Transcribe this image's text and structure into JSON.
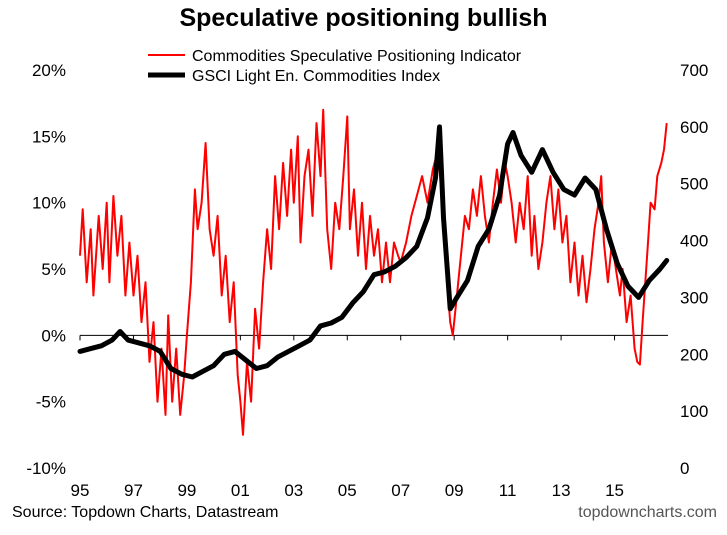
{
  "chart_data": {
    "type": "line",
    "title": "Speculative positioning bullish",
    "source": "Source: Topdown Charts, Datastream",
    "watermark": "topdowncharts.com",
    "x_ticks": [
      "95",
      "97",
      "99",
      "01",
      "03",
      "05",
      "07",
      "09",
      "11",
      "13",
      "15"
    ],
    "x_range": [
      1995.0,
      2017.0
    ],
    "y_left": {
      "ticks": [
        "-10%",
        "-5%",
        "0%",
        "5%",
        "10%",
        "15%",
        "20%"
      ],
      "range": [
        -10,
        20
      ]
    },
    "y_right": {
      "ticks": [
        "0",
        "100",
        "200",
        "300",
        "400",
        "500",
        "600",
        "700"
      ],
      "range": [
        0,
        700
      ]
    },
    "legend_position": "top-center",
    "series": [
      {
        "name": "Commodities Speculative Positioning Indicator",
        "color": "#ff0000",
        "axis": "left",
        "points": [
          [
            1995.0,
            6
          ],
          [
            1995.1,
            9.5
          ],
          [
            1995.25,
            4
          ],
          [
            1995.4,
            8
          ],
          [
            1995.5,
            3
          ],
          [
            1995.7,
            9
          ],
          [
            1995.85,
            5
          ],
          [
            1996.0,
            10
          ],
          [
            1996.1,
            4
          ],
          [
            1996.25,
            10.5
          ],
          [
            1996.4,
            6
          ],
          [
            1996.55,
            9
          ],
          [
            1996.7,
            3
          ],
          [
            1996.85,
            7
          ],
          [
            1997.0,
            3
          ],
          [
            1997.15,
            6
          ],
          [
            1997.3,
            1
          ],
          [
            1997.45,
            4
          ],
          [
            1997.6,
            -2
          ],
          [
            1997.75,
            1
          ],
          [
            1997.9,
            -5
          ],
          [
            1998.05,
            -1
          ],
          [
            1998.2,
            -6
          ],
          [
            1998.3,
            1.5
          ],
          [
            1998.45,
            -5
          ],
          [
            1998.6,
            -1
          ],
          [
            1998.75,
            -6
          ],
          [
            1998.9,
            -3
          ],
          [
            1999.0,
            0
          ],
          [
            1999.15,
            4
          ],
          [
            1999.3,
            11
          ],
          [
            1999.4,
            8
          ],
          [
            1999.55,
            10
          ],
          [
            1999.7,
            14.5
          ],
          [
            1999.85,
            8
          ],
          [
            2000.0,
            6
          ],
          [
            2000.15,
            9
          ],
          [
            2000.3,
            3
          ],
          [
            2000.45,
            6
          ],
          [
            2000.6,
            1
          ],
          [
            2000.75,
            4
          ],
          [
            2000.9,
            -3
          ],
          [
            2001.0,
            -5
          ],
          [
            2001.1,
            -7.5
          ],
          [
            2001.25,
            -2
          ],
          [
            2001.4,
            -5
          ],
          [
            2001.55,
            2
          ],
          [
            2001.7,
            -1
          ],
          [
            2001.85,
            4
          ],
          [
            2002.0,
            8
          ],
          [
            2002.15,
            5
          ],
          [
            2002.3,
            12
          ],
          [
            2002.45,
            8
          ],
          [
            2002.6,
            13
          ],
          [
            2002.75,
            9
          ],
          [
            2002.9,
            14
          ],
          [
            2003.0,
            10
          ],
          [
            2003.15,
            15
          ],
          [
            2003.25,
            7
          ],
          [
            2003.4,
            12
          ],
          [
            2003.55,
            14
          ],
          [
            2003.7,
            9
          ],
          [
            2003.85,
            16
          ],
          [
            2004.0,
            12
          ],
          [
            2004.1,
            17
          ],
          [
            2004.25,
            8
          ],
          [
            2004.4,
            5
          ],
          [
            2004.55,
            10
          ],
          [
            2004.7,
            8
          ],
          [
            2004.85,
            12
          ],
          [
            2005.0,
            16.5
          ],
          [
            2005.1,
            8
          ],
          [
            2005.25,
            11
          ],
          [
            2005.4,
            6
          ],
          [
            2005.55,
            10
          ],
          [
            2005.7,
            5
          ],
          [
            2005.85,
            9
          ],
          [
            2006.0,
            6
          ],
          [
            2006.15,
            8
          ],
          [
            2006.3,
            4
          ],
          [
            2006.45,
            7
          ],
          [
            2006.6,
            4
          ],
          [
            2006.75,
            7
          ],
          [
            2006.9,
            6
          ],
          [
            2007.0,
            5.5
          ],
          [
            2007.2,
            7
          ],
          [
            2007.4,
            9
          ],
          [
            2007.6,
            10.5
          ],
          [
            2007.8,
            12
          ],
          [
            2008.0,
            10
          ],
          [
            2008.2,
            12.5
          ],
          [
            2008.4,
            14
          ],
          [
            2008.55,
            10
          ],
          [
            2008.7,
            5
          ],
          [
            2008.85,
            1
          ],
          [
            2008.95,
            0
          ],
          [
            2009.1,
            3
          ],
          [
            2009.25,
            6
          ],
          [
            2009.4,
            9
          ],
          [
            2009.55,
            8
          ],
          [
            2009.7,
            11
          ],
          [
            2009.85,
            9
          ],
          [
            2010.0,
            12
          ],
          [
            2010.15,
            9
          ],
          [
            2010.3,
            7
          ],
          [
            2010.45,
            10
          ],
          [
            2010.6,
            12.5
          ],
          [
            2010.75,
            10
          ],
          [
            2010.9,
            13
          ],
          [
            2011.0,
            12
          ],
          [
            2011.15,
            10
          ],
          [
            2011.3,
            7
          ],
          [
            2011.45,
            10
          ],
          [
            2011.6,
            8
          ],
          [
            2011.75,
            12
          ],
          [
            2011.9,
            6
          ],
          [
            2012.0,
            9
          ],
          [
            2012.15,
            5
          ],
          [
            2012.3,
            7
          ],
          [
            2012.45,
            10
          ],
          [
            2012.6,
            12
          ],
          [
            2012.75,
            8
          ],
          [
            2012.9,
            11
          ],
          [
            2013.05,
            7
          ],
          [
            2013.2,
            9
          ],
          [
            2013.35,
            4
          ],
          [
            2013.5,
            7
          ],
          [
            2013.65,
            3
          ],
          [
            2013.8,
            6
          ],
          [
            2013.95,
            2.5
          ],
          [
            2014.1,
            5
          ],
          [
            2014.25,
            8
          ],
          [
            2014.4,
            10
          ],
          [
            2014.5,
            12
          ],
          [
            2014.6,
            7
          ],
          [
            2014.75,
            4
          ],
          [
            2014.9,
            7
          ],
          [
            2015.05,
            5
          ],
          [
            2015.2,
            3
          ],
          [
            2015.3,
            5
          ],
          [
            2015.45,
            1
          ],
          [
            2015.6,
            3
          ],
          [
            2015.75,
            -1
          ],
          [
            2015.85,
            -2
          ],
          [
            2015.95,
            -2.2
          ],
          [
            2016.05,
            1
          ],
          [
            2016.15,
            4
          ],
          [
            2016.25,
            7
          ],
          [
            2016.35,
            10
          ],
          [
            2016.5,
            9.5
          ],
          [
            2016.6,
            12
          ],
          [
            2016.75,
            13
          ],
          [
            2016.85,
            14
          ],
          [
            2016.95,
            16
          ]
        ]
      },
      {
        "name": "GSCI Light En. Commodities Index",
        "color": "#000000",
        "axis": "right",
        "points": [
          [
            1995.0,
            205
          ],
          [
            1995.4,
            210
          ],
          [
            1995.8,
            215
          ],
          [
            1996.2,
            225
          ],
          [
            1996.5,
            240
          ],
          [
            1996.8,
            225
          ],
          [
            1997.2,
            220
          ],
          [
            1997.6,
            215
          ],
          [
            1998.0,
            205
          ],
          [
            1998.4,
            175
          ],
          [
            1998.8,
            165
          ],
          [
            1999.2,
            160
          ],
          [
            1999.6,
            170
          ],
          [
            2000.0,
            180
          ],
          [
            2000.4,
            200
          ],
          [
            2000.8,
            205
          ],
          [
            2001.2,
            190
          ],
          [
            2001.6,
            175
          ],
          [
            2002.0,
            180
          ],
          [
            2002.4,
            195
          ],
          [
            2002.8,
            205
          ],
          [
            2003.2,
            215
          ],
          [
            2003.6,
            225
          ],
          [
            2004.0,
            250
          ],
          [
            2004.4,
            255
          ],
          [
            2004.8,
            265
          ],
          [
            2005.2,
            290
          ],
          [
            2005.6,
            310
          ],
          [
            2006.0,
            340
          ],
          [
            2006.4,
            345
          ],
          [
            2006.8,
            355
          ],
          [
            2007.2,
            370
          ],
          [
            2007.6,
            390
          ],
          [
            2008.0,
            440
          ],
          [
            2008.3,
            510
          ],
          [
            2008.45,
            600
          ],
          [
            2008.6,
            440
          ],
          [
            2008.85,
            280
          ],
          [
            2009.1,
            300
          ],
          [
            2009.5,
            330
          ],
          [
            2009.9,
            390
          ],
          [
            2010.3,
            420
          ],
          [
            2010.7,
            480
          ],
          [
            2011.0,
            570
          ],
          [
            2011.2,
            590
          ],
          [
            2011.5,
            550
          ],
          [
            2011.9,
            520
          ],
          [
            2012.3,
            560
          ],
          [
            2012.7,
            520
          ],
          [
            2013.1,
            490
          ],
          [
            2013.5,
            480
          ],
          [
            2013.9,
            510
          ],
          [
            2014.3,
            490
          ],
          [
            2014.7,
            420
          ],
          [
            2015.1,
            360
          ],
          [
            2015.5,
            320
          ],
          [
            2015.9,
            300
          ],
          [
            2016.3,
            330
          ],
          [
            2016.7,
            350
          ],
          [
            2016.95,
            365
          ]
        ]
      }
    ]
  }
}
